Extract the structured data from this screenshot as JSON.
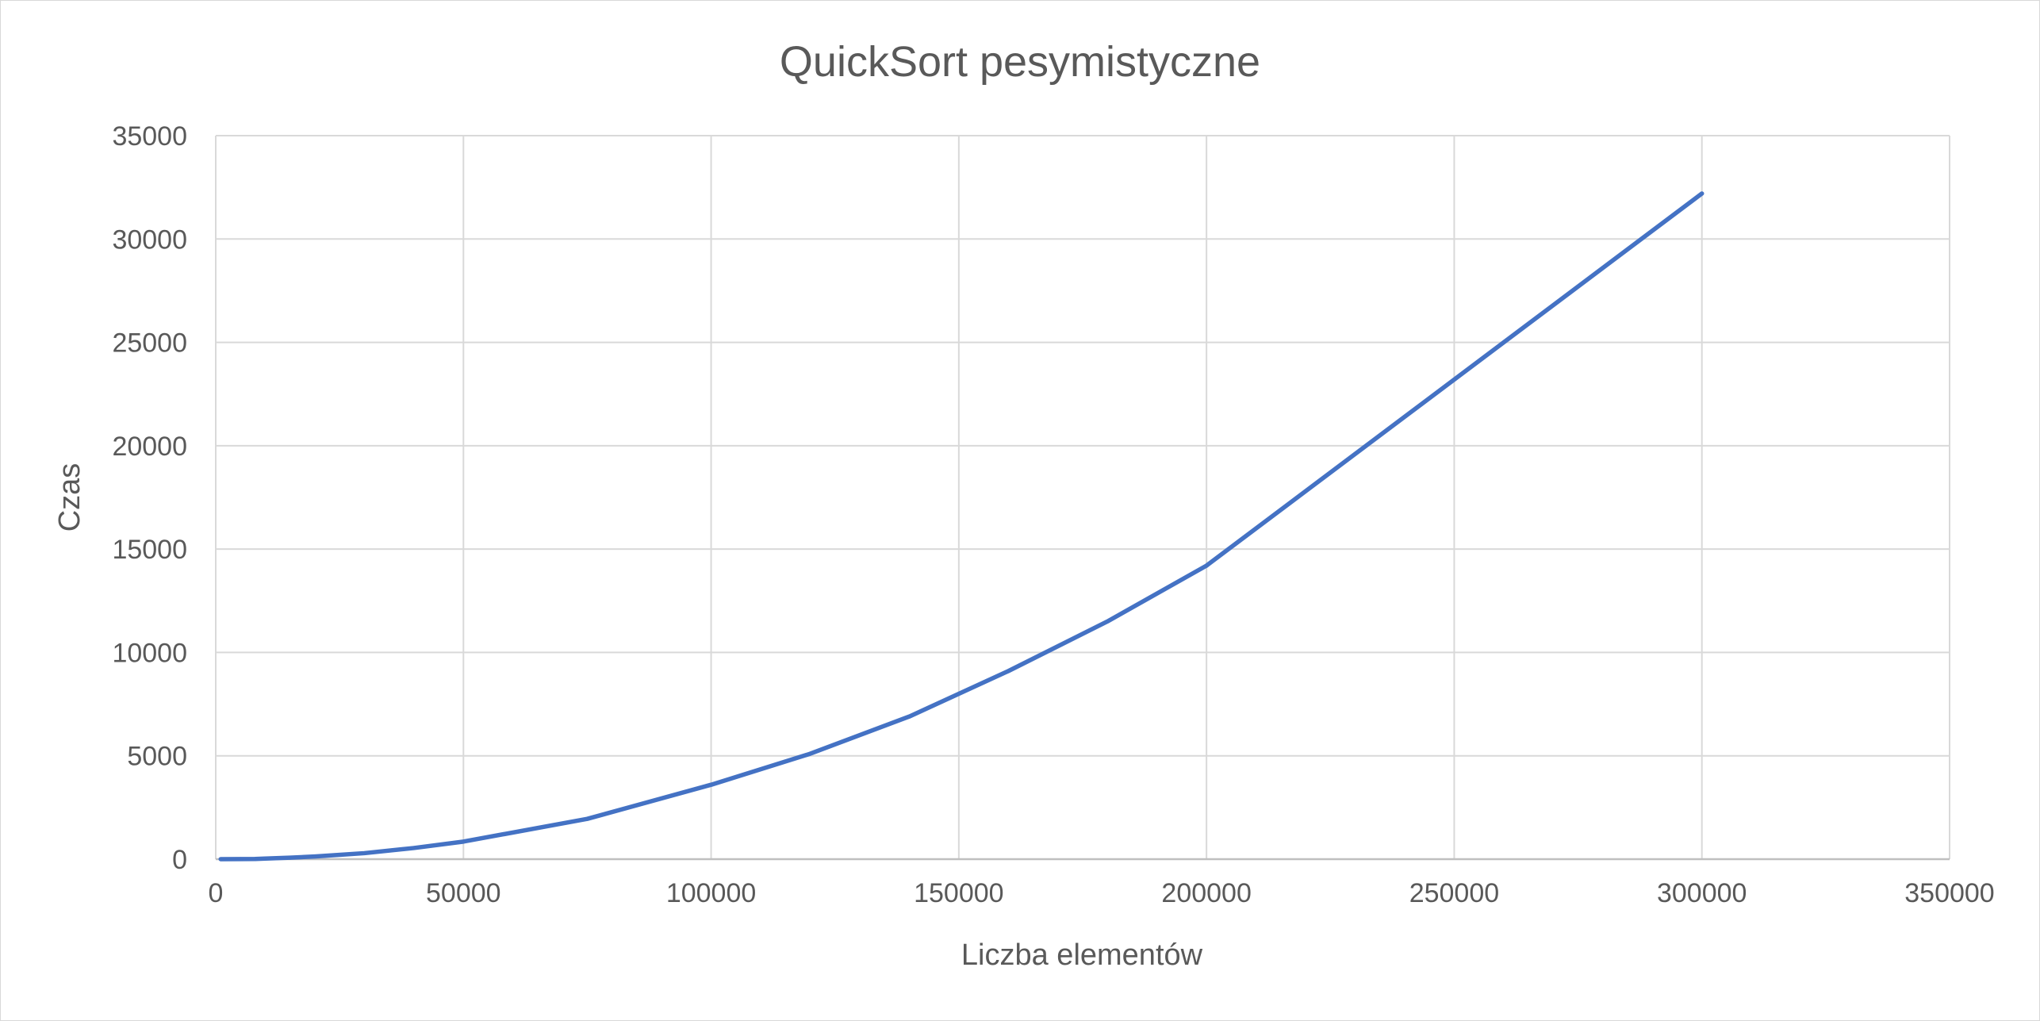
{
  "chart_data": {
    "type": "line",
    "title": "QuickSort pesymistyczne",
    "xlabel": "Liczba elementów",
    "ylabel": "Czas",
    "xlim": [
      0,
      350000
    ],
    "ylim": [
      0,
      35000
    ],
    "x_ticks": [
      "0",
      "50000",
      "100000",
      "150000",
      "200000",
      "250000",
      "300000",
      "350000"
    ],
    "y_ticks": [
      "0",
      "5000",
      "10000",
      "15000",
      "20000",
      "25000",
      "30000",
      "35000"
    ],
    "grid": true,
    "legend": "none",
    "series": [
      {
        "color": "#4472c4",
        "points": [
          [
            1000,
            1
          ],
          [
            5000,
            5
          ],
          [
            8000,
            12
          ],
          [
            10000,
            30
          ],
          [
            15000,
            70
          ],
          [
            20000,
            130
          ],
          [
            30000,
            290
          ],
          [
            40000,
            540
          ],
          [
            50000,
            850
          ],
          [
            75000,
            1950
          ],
          [
            100000,
            3600
          ],
          [
            120000,
            5100
          ],
          [
            140000,
            6900
          ],
          [
            160000,
            9100
          ],
          [
            180000,
            11500
          ],
          [
            200000,
            14200
          ],
          [
            300000,
            32200
          ]
        ]
      }
    ]
  }
}
